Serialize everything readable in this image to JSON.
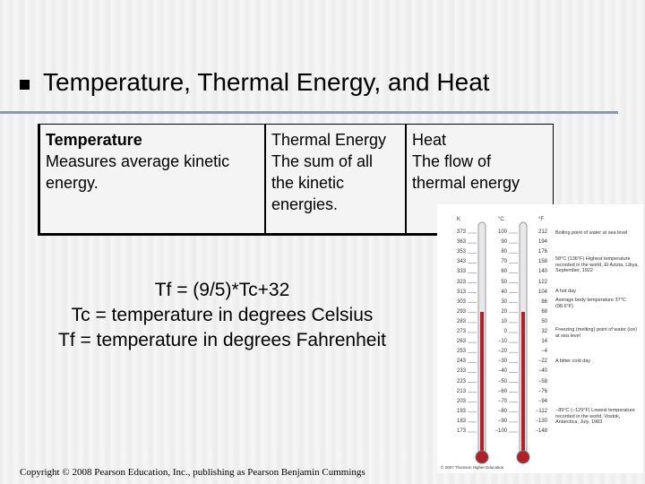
{
  "title": "Temperature, Thermal Energy, and Heat",
  "table": {
    "columns": [
      {
        "heading": "Temperature",
        "text": "Measures average kinetic energy."
      },
      {
        "heading": "Thermal Energy",
        "text": "The sum of all the kinetic energies."
      },
      {
        "heading": "Heat",
        "text": "The flow of thermal energy"
      }
    ]
  },
  "formula": [
    "Tf = (9/5)*Tc+32",
    "Tc = temperature in degrees Celsius",
    "Tf = temperature in degrees Fahrenheit"
  ],
  "thermometer": {
    "headers": [
      "K",
      "°C",
      "°F"
    ],
    "kelvin": [
      "373",
      "363",
      "353",
      "343",
      "333",
      "323",
      "313",
      "303",
      "293",
      "283",
      "273",
      "263",
      "253",
      "243",
      "233",
      "223",
      "213",
      "203",
      "193",
      "183",
      "173"
    ],
    "celsius": [
      "100",
      "90",
      "80",
      "70",
      "60",
      "50",
      "40",
      "30",
      "20",
      "10",
      "0",
      "−10",
      "−20",
      "−30",
      "−40",
      "−50",
      "−60",
      "−70",
      "−80",
      "−90",
      "−100"
    ],
    "fahrenheit": [
      "212",
      "194",
      "176",
      "158",
      "140",
      "122",
      "104",
      "86",
      "68",
      "50",
      "32",
      "14",
      "−4",
      "−22",
      "−40",
      "−58",
      "−76",
      "−94",
      "−112",
      "−130",
      "−148"
    ],
    "annotations": [
      "Boiling point of water at sea level",
      "58°C (136°F) Highest temperature recorded in the world, El Azizia, Libya, September, 1922",
      "A hot day",
      "Average body temperature 37°C (98.6°F)",
      "Freezing (melting) point of water (ice) at sea level",
      "A bitter cold day",
      "−89°C (−129°F) Lowest temperature recorded in the world, Vostok, Antarctica, July, 1983"
    ],
    "credit": "© 2007 Thomson Higher Education"
  },
  "copyright": "Copyright © 2008 Pearson Education, Inc., publishing as Pearson Benjamin Cummings"
}
